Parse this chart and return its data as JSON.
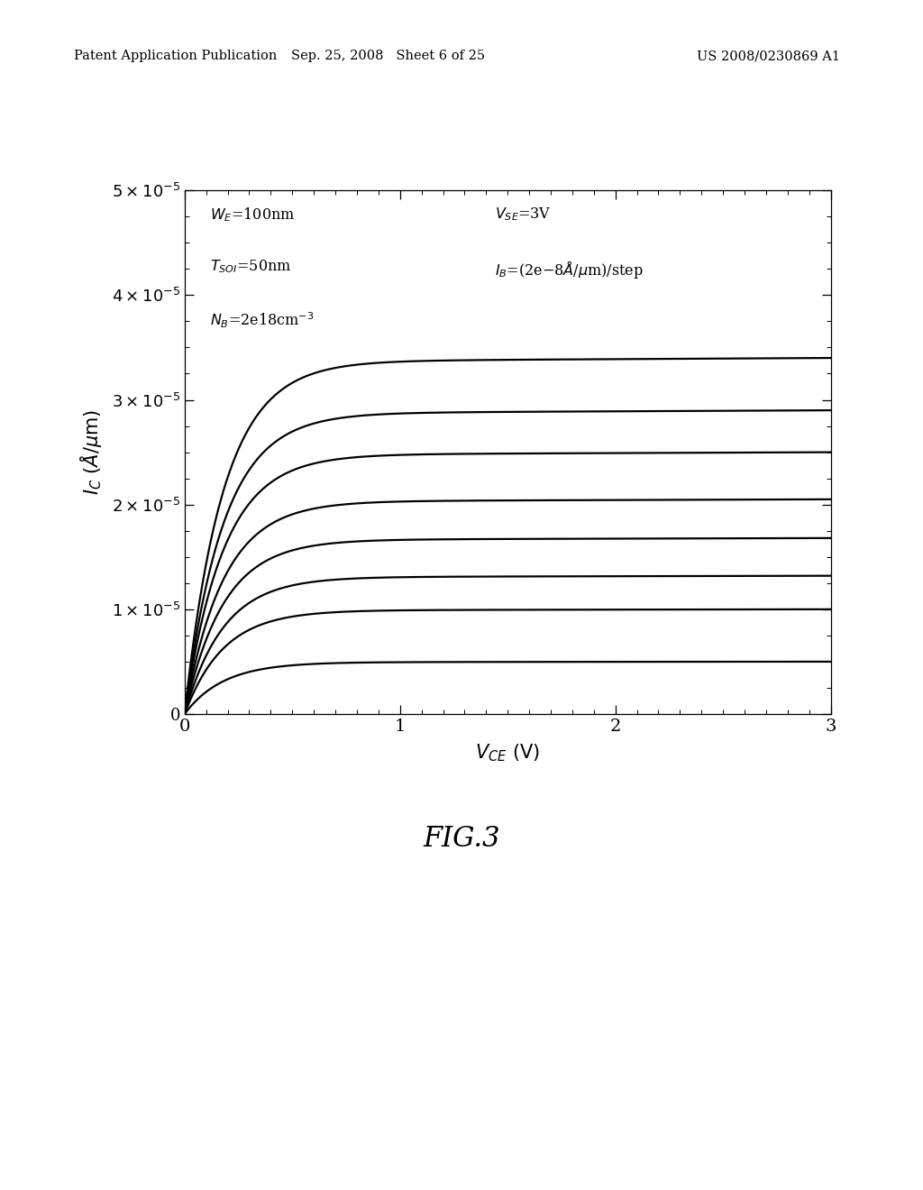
{
  "xlim": [
    0,
    3
  ],
  "ylim": [
    0,
    5e-05
  ],
  "yticks": [
    0,
    1e-05,
    2e-05,
    3e-05,
    4e-05,
    5e-05
  ],
  "xticks": [
    0,
    1,
    2,
    3
  ],
  "plateau_values": [
    3.4e-05,
    2.9e-05,
    2.5e-05,
    2.05e-05,
    1.68e-05,
    1.32e-05,
    1e-05,
    5e-06
  ],
  "knee_voltage": 0.18,
  "VA": 300,
  "background_color": "#ffffff",
  "line_color": "#000000",
  "line_width": 1.6,
  "fig_caption": "FIG.3",
  "header_left": "Patent Application Publication",
  "header_center": "Sep. 25, 2008   Sheet 6 of 25",
  "header_right": "US 2008/0230869 A1"
}
